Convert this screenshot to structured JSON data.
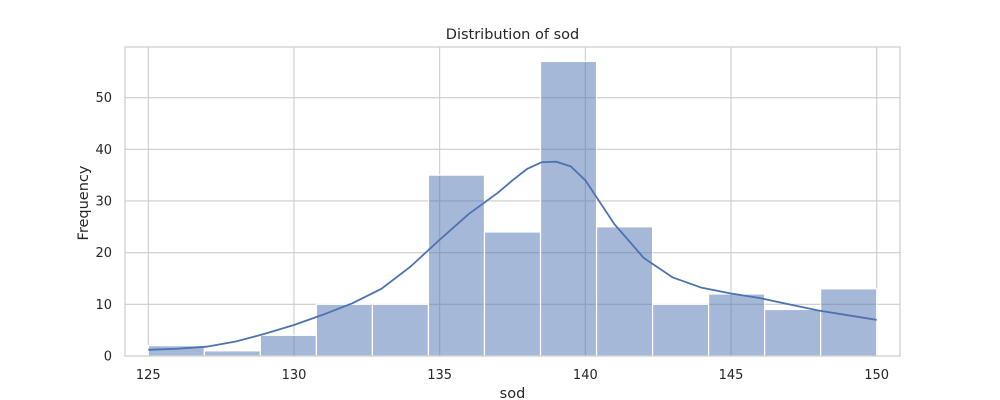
{
  "chart_data": {
    "type": "bar",
    "title": "Distribution of sod",
    "xlabel": "sod",
    "ylabel": "Frequency",
    "xlim": [
      124.2,
      150.8
    ],
    "ylim": [
      0,
      59.8
    ],
    "grid": true,
    "xticks": [
      125,
      130,
      135,
      140,
      145,
      150
    ],
    "yticks": [
      0,
      10,
      20,
      30,
      40,
      50
    ],
    "bin_edges": [
      125,
      126.923,
      128.846,
      130.769,
      132.692,
      134.615,
      136.538,
      138.462,
      140.385,
      142.308,
      144.231,
      146.154,
      148.077,
      150
    ],
    "counts": [
      2,
      1,
      4,
      10,
      10,
      35,
      24,
      57,
      25,
      10,
      12,
      9,
      13
    ],
    "kde": {
      "x": [
        125,
        126,
        127,
        128,
        129,
        130,
        131,
        132,
        133,
        134,
        135,
        136,
        137,
        137.5,
        138,
        138.5,
        139,
        139.5,
        140,
        141,
        142,
        143,
        144,
        145,
        146,
        147,
        148,
        149,
        150
      ],
      "y": [
        1.2,
        1.4,
        1.8,
        2.8,
        4.3,
        6.0,
        8.0,
        10.2,
        13.0,
        17.3,
        22.5,
        27.5,
        31.6,
        34.0,
        36.2,
        37.5,
        37.6,
        36.7,
        34.0,
        25.5,
        19.0,
        15.2,
        13.2,
        12.1,
        11.2,
        10.0,
        8.8,
        7.9,
        7.0
      ]
    }
  }
}
